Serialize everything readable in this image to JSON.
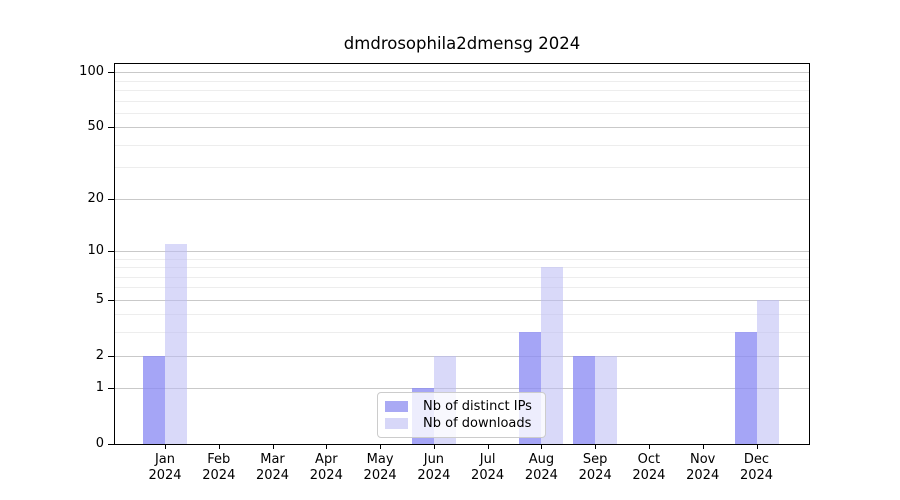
{
  "chart_data": {
    "type": "bar",
    "title": "dmdrosophila2dmensg 2024",
    "categories": [
      "Jan",
      "Feb",
      "Mar",
      "Apr",
      "May",
      "Jun",
      "Jul",
      "Aug",
      "Sep",
      "Oct",
      "Nov",
      "Dec"
    ],
    "x_tick_second_line": "2024",
    "series": [
      {
        "name": "Nb of distinct IPs",
        "key": "distinct-ips",
        "fill": "rgba(140,140,243,0.78)",
        "legend_color": "#a9a9f4",
        "values": [
          2,
          0,
          0,
          0,
          0,
          1,
          0,
          3,
          2,
          0,
          0,
          3
        ]
      },
      {
        "name": "Nb of downloads",
        "key": "downloads",
        "fill": "rgba(188,188,244,0.56)",
        "legend_color": "#d7d7f8",
        "values": [
          11,
          0,
          0,
          0,
          0,
          2,
          0,
          8,
          2,
          0,
          0,
          5
        ]
      }
    ],
    "yscale": "log1p",
    "ylim": [
      0,
      111
    ],
    "yticks": [
      100,
      50,
      20,
      10,
      5,
      2,
      1,
      0
    ],
    "minor_yticks": [
      90,
      80,
      70,
      60,
      40,
      30,
      9,
      8,
      7,
      6,
      4,
      3
    ],
    "grid": true,
    "legend_position": "lower center",
    "colors": {
      "grid_major": "#c9c9c9",
      "grid_minor": "#ededed",
      "spine": "#000000",
      "text": "#000000",
      "background": "#ffffff"
    }
  }
}
